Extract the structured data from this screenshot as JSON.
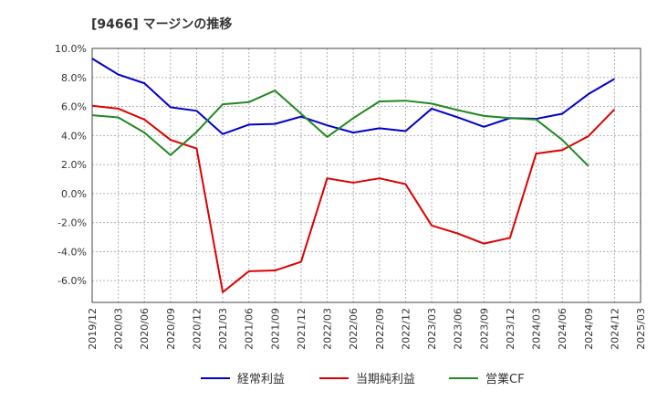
{
  "chart_data": {
    "type": "line",
    "title": "[9466]  マージンの推移",
    "xlabel": "",
    "ylabel": "",
    "x": [
      "2019/12",
      "2020/03",
      "2020/06",
      "2020/09",
      "2020/12",
      "2021/03",
      "2021/06",
      "2021/09",
      "2021/12",
      "2022/03",
      "2022/06",
      "2022/09",
      "2022/12",
      "2023/03",
      "2023/06",
      "2023/09",
      "2023/12",
      "2024/03",
      "2024/06",
      "2024/09",
      "2024/12",
      "2025/03"
    ],
    "ylim": [
      -7.5,
      10.0
    ],
    "yticks": [
      10.0,
      8.0,
      6.0,
      4.0,
      2.0,
      0.0,
      -2.0,
      -4.0,
      -6.0
    ],
    "ytick_labels": [
      "10.0%",
      "8.0%",
      "6.0%",
      "4.0%",
      "2.0%",
      "0.0%",
      "-2.0%",
      "-4.0%",
      "-6.0%"
    ],
    "grid": true,
    "legend": "bottom",
    "series": [
      {
        "name": "経常利益",
        "color": "#0000cc",
        "values": [
          9.3,
          8.2,
          7.6,
          5.95,
          5.7,
          4.1,
          4.75,
          4.8,
          5.3,
          4.7,
          4.2,
          4.5,
          4.3,
          5.85,
          5.25,
          4.6,
          5.2,
          5.15,
          5.5,
          6.85,
          7.9,
          null
        ]
      },
      {
        "name": "当期純利益",
        "color": "#dd0000",
        "values": [
          6.05,
          5.85,
          5.1,
          3.7,
          3.1,
          -6.8,
          -5.35,
          -5.3,
          -4.7,
          1.05,
          0.75,
          1.05,
          0.65,
          -2.2,
          -2.75,
          -3.45,
          -3.05,
          2.75,
          3.0,
          3.95,
          5.8,
          null
        ]
      },
      {
        "name": "営業CF",
        "color": "#228822",
        "values": [
          5.4,
          5.25,
          4.2,
          2.65,
          4.25,
          6.15,
          6.3,
          7.1,
          5.5,
          3.9,
          5.2,
          6.35,
          6.4,
          6.2,
          5.75,
          5.35,
          5.2,
          5.1,
          3.7,
          1.9,
          null,
          null
        ]
      }
    ]
  }
}
